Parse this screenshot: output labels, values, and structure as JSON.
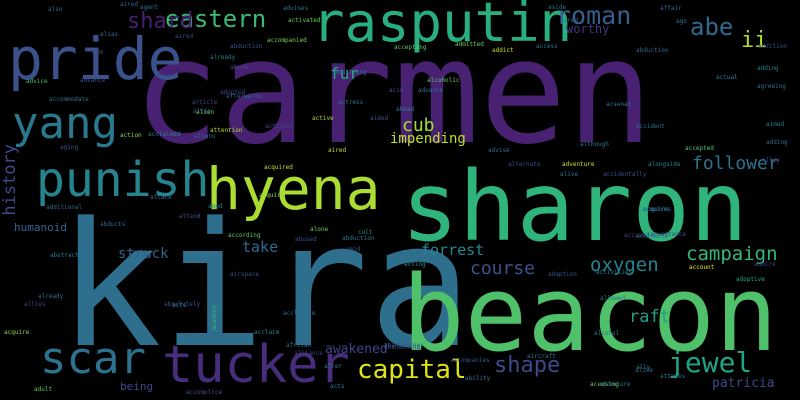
{
  "word_cloud": {
    "background": "#000000",
    "big_words": [
      {
        "text": "carmen",
        "color": "#482173"
      },
      {
        "text": "kira",
        "color": "#2e6f8e"
      },
      {
        "text": "beacon",
        "color": "#4fc16b"
      },
      {
        "text": "sharon",
        "color": "#2fb47c"
      },
      {
        "text": "hyena",
        "color": "#aadc32"
      },
      {
        "text": "rasputin",
        "color": "#29af7f"
      },
      {
        "text": "pride",
        "color": "#3b518b"
      },
      {
        "text": "tucker",
        "color": "#472d7b"
      },
      {
        "text": "punish",
        "color": "#25858e"
      },
      {
        "text": "scar",
        "color": "#2c728e"
      },
      {
        "text": "yang",
        "color": "#2a788e"
      },
      {
        "text": "eastern",
        "color": "#3aba76"
      },
      {
        "text": "shard",
        "color": "#481f70"
      },
      {
        "text": "roman",
        "color": "#355f8d"
      },
      {
        "text": "abe",
        "color": "#31688e"
      },
      {
        "text": "ii",
        "color": "#b5de2b"
      },
      {
        "text": "fur",
        "color": "#22a884"
      },
      {
        "text": "cub",
        "color": "#a5db36"
      },
      {
        "text": "impending",
        "color": "#c2df23"
      },
      {
        "text": "history",
        "color": "#3e4989"
      },
      {
        "text": "follower",
        "color": "#2c728e"
      },
      {
        "text": "campaign",
        "color": "#35b779"
      },
      {
        "text": "course",
        "color": "#3b528b"
      },
      {
        "text": "oxygen",
        "color": "#26828e"
      },
      {
        "text": "forrest",
        "color": "#23898e"
      },
      {
        "text": "take",
        "color": "#31688e"
      },
      {
        "text": "struck",
        "color": "#33638d"
      },
      {
        "text": "raft",
        "color": "#1fa088"
      },
      {
        "text": "jewel",
        "color": "#20a486"
      },
      {
        "text": "shape",
        "color": "#3e4a89"
      },
      {
        "text": "capital",
        "color": "#dde318"
      },
      {
        "text": "awakened",
        "color": "#414487"
      },
      {
        "text": "patricia",
        "color": "#404688"
      },
      {
        "text": "worthy",
        "color": "#453781"
      },
      {
        "text": "humanoid",
        "color": "#33638d"
      },
      {
        "text": "being",
        "color": "#3f4788"
      }
    ],
    "small_words": [
      {
        "text": "attention",
        "color": "#b8de29"
      },
      {
        "text": "adventure",
        "color": "#d2e21b"
      },
      {
        "text": "acquired",
        "color": "#bddf26"
      },
      {
        "text": "aired",
        "color": "#c0df25"
      },
      {
        "text": "accompanied",
        "color": "#7ad151"
      },
      {
        "text": "activated",
        "color": "#6ccd5a"
      },
      {
        "text": "active",
        "color": "#addc30"
      },
      {
        "text": "action",
        "color": "#95d840"
      },
      {
        "text": "accepting",
        "color": "#5ec962"
      },
      {
        "text": "admitted",
        "color": "#6ccd5a"
      },
      {
        "text": "advice",
        "color": "#4ac16d"
      },
      {
        "text": "admire",
        "color": "#404588"
      },
      {
        "text": "alone",
        "color": "#6ece58"
      },
      {
        "text": "according",
        "color": "#5ec962"
      },
      {
        "text": "acquire",
        "color": "#8fd744"
      },
      {
        "text": "account",
        "color": "#f1e51d"
      },
      {
        "text": "accusing",
        "color": "#7ad151"
      },
      {
        "text": "adult",
        "color": "#5ec962"
      },
      {
        "text": "alcoholic",
        "color": "#5ec962"
      },
      {
        "text": "already",
        "color": "#31688e"
      },
      {
        "text": "abandoning",
        "color": "#3b528b"
      },
      {
        "text": "accidentally",
        "color": "#3e4a89"
      },
      {
        "text": "adoptive",
        "color": "#22a884"
      },
      {
        "text": "accepted",
        "color": "#52c569"
      },
      {
        "text": "accidents",
        "color": "#2a788e"
      },
      {
        "text": "airspace",
        "color": "#3e4a89"
      },
      {
        "text": "abducts",
        "color": "#31688e"
      },
      {
        "text": "cult",
        "color": "#21918c"
      },
      {
        "text": "absolutely",
        "color": "#3a548c"
      },
      {
        "text": "abused",
        "color": "#3b528b"
      },
      {
        "text": "acclimate",
        "color": "#2c728e"
      },
      {
        "text": "advises",
        "color": "#2a788e"
      },
      {
        "text": "aliens",
        "color": "#31688e"
      },
      {
        "text": "amid",
        "color": "#3a548c"
      },
      {
        "text": "abduction",
        "color": "#2c728e"
      },
      {
        "text": "adopted",
        "color": "#404688"
      },
      {
        "text": "abuse",
        "color": "#3e4a89"
      },
      {
        "text": "aged",
        "color": "#26828e"
      },
      {
        "text": "aside",
        "color": "#2c728e"
      },
      {
        "text": "aired",
        "color": "#31688e"
      },
      {
        "text": "accused",
        "color": "#414487"
      },
      {
        "text": "adding",
        "color": "#26828e"
      },
      {
        "text": "aircraft",
        "color": "#2a788e"
      },
      {
        "text": "accomplice",
        "color": "#3b528b"
      },
      {
        "text": "ability",
        "color": "#2c728e"
      },
      {
        "text": "activities",
        "color": "#26828e"
      },
      {
        "text": "academy",
        "color": "#35b779"
      },
      {
        "text": "admitting",
        "color": "#2c728e"
      },
      {
        "text": "afterwards",
        "color": "#31688e"
      },
      {
        "text": "article",
        "color": "#3e4a89"
      },
      {
        "text": "actress",
        "color": "#2c728e"
      },
      {
        "text": "arsenal",
        "color": "#2a788e"
      },
      {
        "text": "acid",
        "color": "#3b528b"
      },
      {
        "text": "advance",
        "color": "#2c728e"
      },
      {
        "text": "acting",
        "color": "#21918c"
      },
      {
        "text": "ahead",
        "color": "#26828e"
      },
      {
        "text": "adaption",
        "color": "#3a548c"
      },
      {
        "text": "accommodate",
        "color": "#2c728e"
      },
      {
        "text": "agreeing",
        "color": "#2c728e"
      },
      {
        "text": "actual",
        "color": "#26828e"
      },
      {
        "text": "addict",
        "color": "#c8e020"
      },
      {
        "text": "abduction",
        "color": "#31688e"
      },
      {
        "text": "aimed",
        "color": "#2a788e"
      },
      {
        "text": "adding",
        "color": "#31688e"
      },
      {
        "text": "allies",
        "color": "#3e4a89"
      },
      {
        "text": "accident",
        "color": "#2c728e"
      },
      {
        "text": "alien",
        "color": "#3b528b"
      },
      {
        "text": "alongside",
        "color": "#26828e"
      },
      {
        "text": "although",
        "color": "#2a788e"
      },
      {
        "text": "alternate",
        "color": "#3e4a89"
      },
      {
        "text": "acts",
        "color": "#2c728e"
      },
      {
        "text": "ally",
        "color": "#26828e"
      },
      {
        "text": "attack",
        "color": "#31688e"
      },
      {
        "text": "agent",
        "color": "#2c728e"
      },
      {
        "text": "ago",
        "color": "#2a788e"
      },
      {
        "text": "additional",
        "color": "#31688e"
      },
      {
        "text": "aging",
        "color": "#3b528b"
      },
      {
        "text": "acceptance",
        "color": "#3e4a89"
      },
      {
        "text": "acquire",
        "color": "#2c728e"
      },
      {
        "text": "acquire",
        "color": "#8fd744"
      },
      {
        "text": "alliance",
        "color": "#404688"
      },
      {
        "text": "african",
        "color": "#2c728e"
      },
      {
        "text": "abandoning",
        "color": "#3b528b"
      },
      {
        "text": "alter",
        "color": "#2a788e"
      },
      {
        "text": "abstract",
        "color": "#26828e"
      },
      {
        "text": "advance",
        "color": "#3a548c"
      },
      {
        "text": "alike",
        "color": "#31688e"
      },
      {
        "text": "alley",
        "color": "#3e4a89"
      },
      {
        "text": "allowed",
        "color": "#2c728e"
      },
      {
        "text": "alcohol",
        "color": "#2a788e"
      },
      {
        "text": "accompanies",
        "color": "#3b528b"
      },
      {
        "text": "acts",
        "color": "#2a788e"
      },
      {
        "text": "activist",
        "color": "#404688"
      },
      {
        "text": "attend",
        "color": "#3b528b"
      },
      {
        "text": "affair",
        "color": "#31688e"
      },
      {
        "text": "alien",
        "color": "#5ec962"
      },
      {
        "text": "aired",
        "color": "#3e4a89"
      },
      {
        "text": "acquires",
        "color": "#2a788e"
      },
      {
        "text": "acclaim",
        "color": "#26828e"
      },
      {
        "text": "aim",
        "color": "#3b528b"
      },
      {
        "text": "abduction",
        "color": "#3b528b"
      },
      {
        "text": "access",
        "color": "#2c728e"
      },
      {
        "text": "already",
        "color": "#26828e"
      },
      {
        "text": "alive",
        "color": "#2a788e"
      },
      {
        "text": "advise",
        "color": "#2c728e"
      },
      {
        "text": "also",
        "color": "#31688e"
      },
      {
        "text": "aided",
        "color": "#3b528b"
      },
      {
        "text": "adventure",
        "color": "#2a788e"
      },
      {
        "text": "addition",
        "color": "#3e4a89"
      },
      {
        "text": "alias",
        "color": "#31688e"
      },
      {
        "text": "attacks",
        "color": "#2a788e"
      },
      {
        "text": "acclaimed",
        "color": "#26828e"
      },
      {
        "text": "aired",
        "color": "#31688e"
      }
    ]
  }
}
